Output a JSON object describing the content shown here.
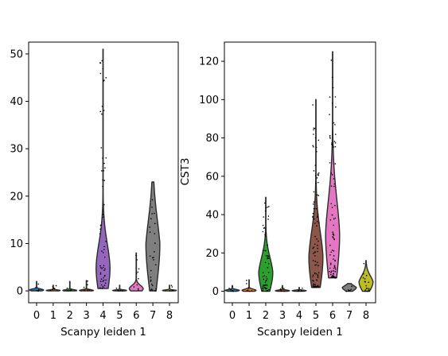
{
  "chart_data": [
    {
      "type": "violin",
      "xlabel": "Scanpy leiden 1",
      "ylabel": "",
      "categories": [
        "0",
        "1",
        "2",
        "3",
        "4",
        "5",
        "6",
        "7",
        "8"
      ],
      "ylim": [
        -2.5,
        52.5
      ],
      "yticks": [
        "0",
        "10",
        "20",
        "30",
        "40",
        "50"
      ],
      "grid": false,
      "series": [
        {
          "category": "0",
          "color": "#1f77b4",
          "min": 0,
          "max": 2,
          "median": 0.2
        },
        {
          "category": "1",
          "color": "#ff7f0e",
          "min": 0,
          "max": 1.2,
          "median": 0.1
        },
        {
          "category": "2",
          "color": "#2ca02c",
          "min": 0,
          "max": 2,
          "median": 0.1
        },
        {
          "category": "3",
          "color": "#d62728",
          "min": 0,
          "max": 2.2,
          "median": 0.1
        },
        {
          "category": "4",
          "color": "#9467bd",
          "min": 0.5,
          "max": 51,
          "median": 5
        },
        {
          "category": "5",
          "color": "#8c564b",
          "min": 0,
          "max": 1.2,
          "median": 0.1
        },
        {
          "category": "6",
          "color": "#e377c2",
          "min": 0,
          "max": 8,
          "median": 0.5
        },
        {
          "category": "7",
          "color": "#7f7f7f",
          "min": 0,
          "max": 23,
          "median": 10
        },
        {
          "category": "8",
          "color": "#bcbd22",
          "min": 0,
          "max": 1.2,
          "median": 0.1
        }
      ]
    },
    {
      "type": "violin",
      "xlabel": "Scanpy leiden 1",
      "ylabel": "CST3",
      "categories": [
        "0",
        "1",
        "2",
        "3",
        "4",
        "5",
        "6",
        "7",
        "8"
      ],
      "ylim": [
        -6,
        130
      ],
      "yticks": [
        "0",
        "20",
        "40",
        "60",
        "80",
        "100",
        "120"
      ],
      "grid": false,
      "series": [
        {
          "category": "0",
          "color": "#1f77b4",
          "min": 0,
          "max": 3,
          "median": 0.5
        },
        {
          "category": "1",
          "color": "#ff7f0e",
          "min": 0,
          "max": 6,
          "median": 0.5
        },
        {
          "category": "2",
          "color": "#2ca02c",
          "min": 0,
          "max": 49,
          "median": 10
        },
        {
          "category": "3",
          "color": "#d62728",
          "min": 0,
          "max": 3,
          "median": 0.3
        },
        {
          "category": "4",
          "color": "#9467bd",
          "min": 0,
          "max": 2,
          "median": 0.3
        },
        {
          "category": "5",
          "color": "#8c564b",
          "min": 2,
          "max": 100,
          "median": 18
        },
        {
          "category": "6",
          "color": "#e377c2",
          "min": 7,
          "max": 125,
          "median": 30
        },
        {
          "category": "7",
          "color": "#7f7f7f",
          "min": 0,
          "max": 4,
          "median": 2
        },
        {
          "category": "8",
          "color": "#bcbd22",
          "min": 0,
          "max": 16,
          "median": 5
        }
      ]
    }
  ]
}
